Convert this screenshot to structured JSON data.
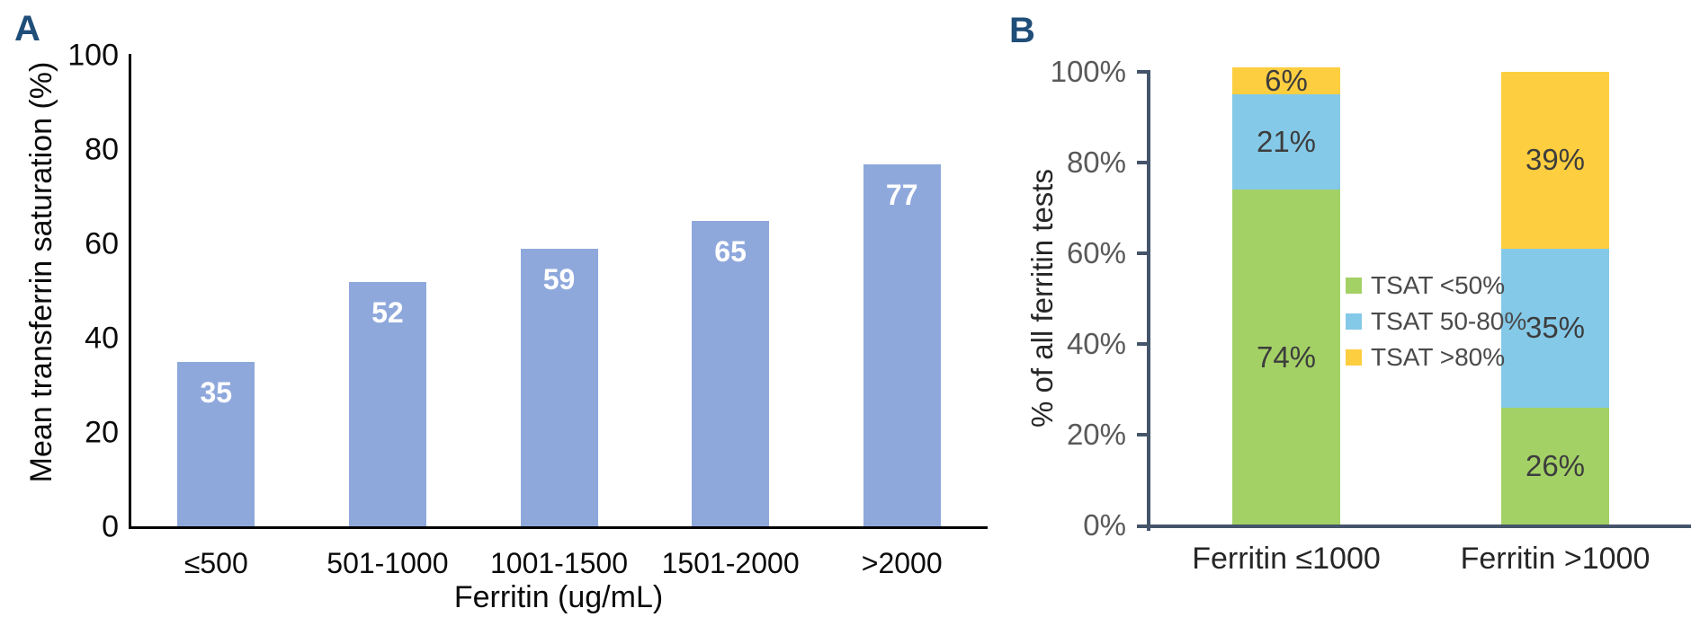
{
  "figure": {
    "panel_a_letter": "A",
    "panel_b_letter": "B",
    "panel_letter_color": "#1F4E79"
  },
  "chart_data": [
    {
      "panel": "A",
      "type": "bar",
      "categories": [
        "≤500",
        "501-1000",
        "1001-1500",
        "1501-2000",
        ">2000"
      ],
      "values": [
        35,
        52,
        59,
        65,
        77
      ],
      "bar_labels": [
        "35",
        "52",
        "59",
        "65",
        "77"
      ],
      "xlabel": "Ferritin (ug/mL)",
      "ylabel": "Mean transferrin saturation (%)",
      "ylim": [
        0,
        100
      ],
      "yticks": [
        0,
        20,
        40,
        60,
        80,
        100
      ],
      "ytick_labels": [
        "0",
        "20",
        "40",
        "60",
        "80",
        "100"
      ],
      "bar_color": "#8FA8DC",
      "bar_label_color": "#FFFFFF",
      "axis_color": "#000000",
      "grid": false,
      "legend": "none"
    },
    {
      "panel": "B",
      "type": "stacked_bar",
      "categories": [
        "Ferritin ≤1000",
        "Ferritin >1000"
      ],
      "series": [
        {
          "name": "TSAT <50%",
          "color": "#A3D166",
          "values": [
            74,
            26
          ],
          "labels": [
            "74%",
            "26%"
          ]
        },
        {
          "name": "TSAT 50-80%",
          "color": "#84C9E8",
          "values": [
            21,
            35
          ],
          "labels": [
            "21%",
            "35%"
          ]
        },
        {
          "name": "TSAT >80%",
          "color": "#FDCE3F",
          "values": [
            6,
            39
          ],
          "labels": [
            "6%",
            "39%"
          ]
        }
      ],
      "ylabel": "% of all ferritin tests",
      "ylim": [
        0,
        100
      ],
      "yticks": [
        0,
        20,
        40,
        60,
        80,
        100
      ],
      "ytick_labels": [
        "0%",
        "20%",
        "40%",
        "60%",
        "80%",
        "100%"
      ],
      "axis_color": "#44546A",
      "tick_label_color": "#595959",
      "segment_label_color": "#3D3D3D",
      "grid": false,
      "legend_position": "inside plot, left of second bar"
    }
  ]
}
